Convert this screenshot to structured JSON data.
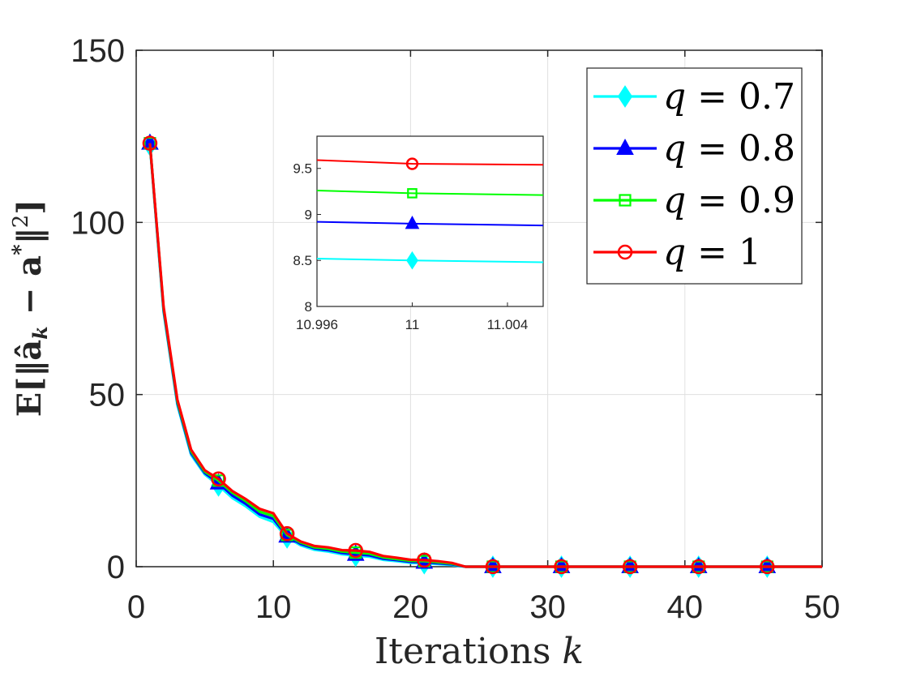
{
  "chart_data": {
    "type": "line",
    "xlabel_prefix": "Iterations ",
    "xlabel_var": "k",
    "ylabel": "E[‖â",
    "ylabel_sub": "k",
    "ylabel_rest": " − a",
    "ylabel_sup": "*",
    "ylabel_end": "‖",
    "ylabel_sup2": "2",
    "ylabel_close": "]",
    "xlim": [
      0,
      50
    ],
    "ylim": [
      0,
      150
    ],
    "xticks": [
      0,
      10,
      20,
      30,
      40,
      50
    ],
    "yticks": [
      0,
      50,
      100,
      150
    ],
    "grid": true,
    "legend_position": "top-right",
    "x": [
      1,
      2,
      3,
      4,
      5,
      6,
      7,
      8,
      9,
      10,
      11,
      12,
      13,
      14,
      15,
      16,
      17,
      18,
      19,
      20,
      21,
      22,
      23,
      24,
      25,
      26,
      27,
      28,
      29,
      30,
      31,
      32,
      33,
      34,
      35,
      36,
      37,
      38,
      39,
      40,
      41,
      42,
      43,
      44,
      45,
      46,
      47,
      48,
      49,
      50
    ],
    "marker_x": [
      1,
      6,
      11,
      16,
      21,
      26,
      31,
      36,
      41,
      46
    ],
    "series": [
      {
        "name": "q = 0.7",
        "legend_var": "q",
        "legend_value": "= 0.7",
        "color": "#00FFFF",
        "marker": "diamond",
        "values": [
          122.5,
          74,
          47,
          32.5,
          26.8,
          23.6,
          20,
          17.5,
          14.5,
          13,
          8.5,
          6.2,
          4.9,
          4.4,
          3.6,
          3.2,
          2.9,
          2,
          1.6,
          1.1,
          1,
          0.8,
          0.5,
          0,
          0,
          0,
          0,
          0,
          0,
          0,
          0,
          0,
          0,
          0,
          0,
          0,
          0,
          0,
          0,
          0,
          0,
          0,
          0,
          0,
          0,
          0,
          0,
          0,
          0,
          0
        ]
      },
      {
        "name": "q = 0.8",
        "legend_var": "q",
        "legend_value": "= 0.8",
        "color": "#0000FF",
        "marker": "triangle",
        "values": [
          123,
          74.5,
          47.5,
          33,
          27.2,
          24.3,
          20.7,
          18.2,
          15.2,
          13.9,
          8.9,
          6.6,
          5.3,
          4.8,
          4.0,
          3.6,
          3.3,
          2.3,
          1.9,
          1.4,
          1.3,
          1.0,
          0.7,
          0,
          0,
          0,
          0,
          0,
          0,
          0,
          0,
          0,
          0,
          0,
          0,
          0,
          0,
          0,
          0,
          0,
          0,
          0,
          0,
          0,
          0,
          0,
          0,
          0,
          0,
          0
        ]
      },
      {
        "name": "q = 0.9",
        "legend_var": "q",
        "legend_value": "= 0.9",
        "color": "#00FF00",
        "marker": "square",
        "values": [
          123,
          75,
          48,
          33.5,
          27.6,
          25,
          21.5,
          19,
          16,
          14.7,
          9.2,
          7,
          5.6,
          5.2,
          4.4,
          4.1,
          3.8,
          2.7,
          2.2,
          1.7,
          1.6,
          1.3,
          0.9,
          0,
          0,
          0,
          0,
          0,
          0,
          0,
          0,
          0,
          0,
          0,
          0,
          0,
          0,
          0,
          0,
          0,
          0,
          0,
          0,
          0,
          0,
          0,
          0,
          0,
          0,
          0
        ]
      },
      {
        "name": "q = 1",
        "legend_var": "q",
        "legend_value": "= 1",
        "color": "#FF0000",
        "marker": "circle",
        "values": [
          123,
          75.5,
          48.5,
          34,
          28,
          25.5,
          22,
          19.6,
          16.8,
          15.5,
          9.6,
          7.3,
          6,
          5.6,
          4.8,
          4.7,
          4.3,
          3.1,
          2.6,
          2,
          1.9,
          1.6,
          1.1,
          0,
          0,
          0,
          0,
          0,
          0,
          0,
          0,
          0,
          0,
          0,
          0,
          0,
          0,
          0,
          0,
          0,
          0,
          0,
          0,
          0,
          0,
          0,
          0,
          0,
          0,
          0
        ]
      }
    ],
    "inset": {
      "xlim": [
        10.996,
        11.0055
      ],
      "ylim": [
        8,
        9.85
      ],
      "xticks": [
        "10.996",
        "11",
        "11.004"
      ],
      "xtick_values": [
        10.996,
        11,
        11.004
      ],
      "yticks": [
        "8",
        "8.5",
        "9",
        "9.5"
      ],
      "ytick_values": [
        8,
        8.5,
        9,
        9.5
      ],
      "marker_x": 11,
      "values_left": [
        8.52,
        8.92,
        9.26,
        9.59
      ],
      "values_at_marker": [
        8.5,
        8.9,
        9.23,
        9.55
      ],
      "values_right": [
        8.48,
        8.88,
        9.21,
        9.54
      ]
    }
  }
}
